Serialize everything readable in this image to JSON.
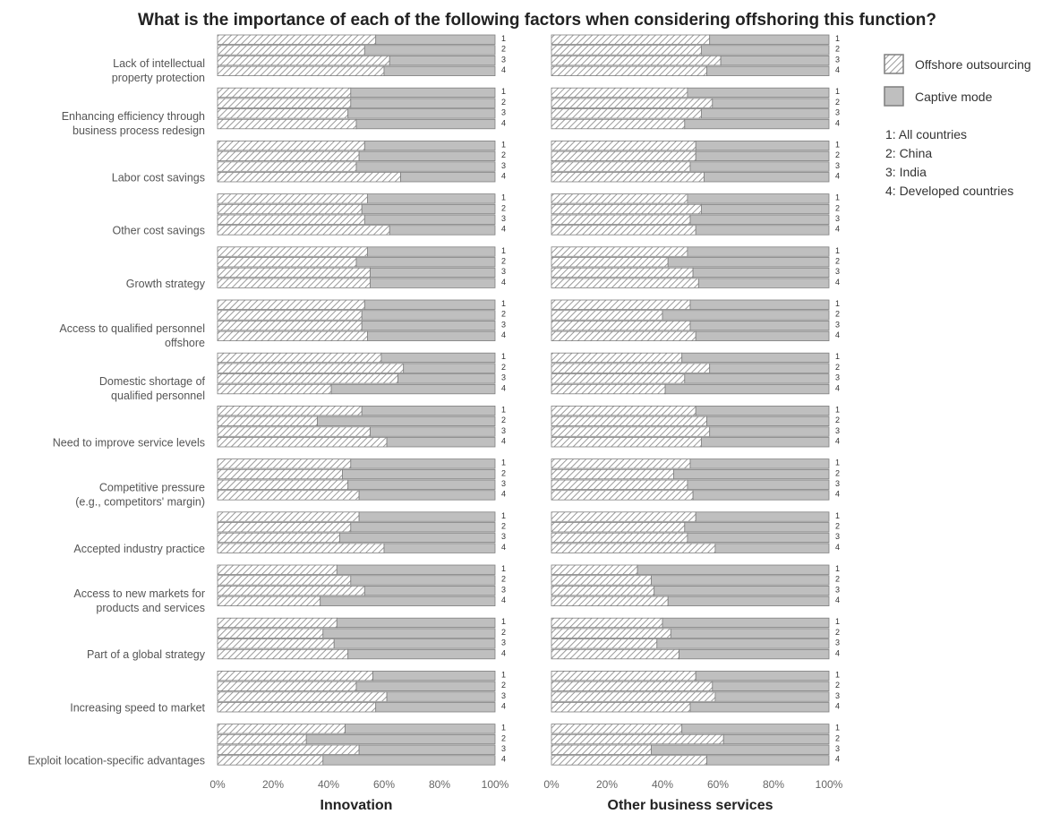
{
  "chart_data": {
    "title": "What is the importance of each of the following factors when considering offshoring this function?",
    "type": "bar",
    "orientation": "horizontal",
    "stacked": "100%",
    "x_ticks": [
      "0%",
      "20%",
      "40%",
      "60%",
      "80%",
      "100%"
    ],
    "xlim": [
      0,
      100
    ],
    "row_labels": [
      "1",
      "2",
      "3",
      "4"
    ],
    "row_key": [
      "1: All countries",
      "2: China",
      "3: India",
      "4: Developed countries"
    ],
    "legend": {
      "position": "right",
      "items": [
        {
          "label": "Offshore outsourcing",
          "pattern": "hatched"
        },
        {
          "label": "Captive mode",
          "pattern": "solid"
        }
      ]
    },
    "factors": [
      [
        "Lack of intellectual",
        "property protection"
      ],
      [
        "Enhancing efficiency through",
        "business process redesign"
      ],
      [
        "Labor cost savings"
      ],
      [
        "Other cost savings"
      ],
      [
        "Growth strategy"
      ],
      [
        "Access to qualified personnel",
        "offshore"
      ],
      [
        "Domestic shortage of",
        "qualified personnel"
      ],
      [
        "Need to improve service levels"
      ],
      [
        "Competitive pressure",
        "(e.g., competitors' margin)"
      ],
      [
        "Accepted industry practice"
      ],
      [
        "Access to new markets for",
        "products and services"
      ],
      [
        "Part of a global strategy"
      ],
      [
        "Increasing speed to market"
      ],
      [
        "Exploit location-specific advantages"
      ]
    ],
    "panels": [
      {
        "title": "Innovation",
        "offshore_outsourcing_pct": [
          [
            57,
            53,
            62,
            60
          ],
          [
            48,
            48,
            47,
            50
          ],
          [
            53,
            51,
            50,
            66
          ],
          [
            54,
            52,
            53,
            62
          ],
          [
            54,
            50,
            55,
            55
          ],
          [
            53,
            52,
            52,
            54
          ],
          [
            59,
            67,
            65,
            41
          ],
          [
            52,
            36,
            55,
            61
          ],
          [
            48,
            45,
            47,
            51
          ],
          [
            51,
            48,
            44,
            60
          ],
          [
            43,
            48,
            53,
            37
          ],
          [
            43,
            38,
            42,
            47
          ],
          [
            56,
            50,
            61,
            57
          ],
          [
            46,
            32,
            51,
            38
          ]
        ]
      },
      {
        "title": "Other business services",
        "offshore_outsourcing_pct": [
          [
            57,
            54,
            61,
            56
          ],
          [
            49,
            58,
            54,
            48
          ],
          [
            52,
            52,
            50,
            55
          ],
          [
            49,
            54,
            50,
            52
          ],
          [
            49,
            42,
            51,
            53
          ],
          [
            50,
            40,
            50,
            52
          ],
          [
            47,
            57,
            48,
            41
          ],
          [
            52,
            56,
            57,
            54
          ],
          [
            50,
            44,
            49,
            51
          ],
          [
            52,
            48,
            49,
            59
          ],
          [
            31,
            36,
            37,
            42
          ],
          [
            40,
            43,
            38,
            46
          ],
          [
            52,
            58,
            59,
            50
          ],
          [
            47,
            62,
            36,
            56
          ]
        ]
      }
    ]
  }
}
